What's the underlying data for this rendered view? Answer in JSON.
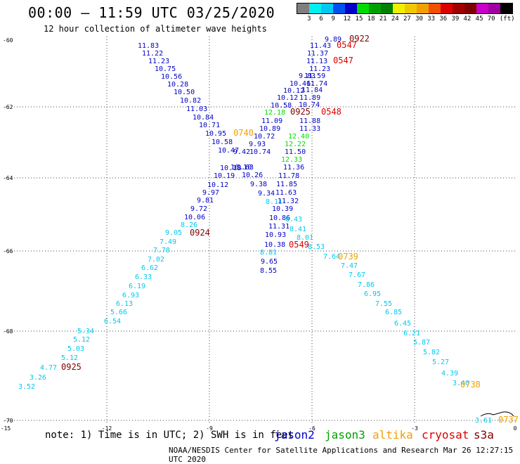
{
  "title": "00:00 – 11:59 UTC 03/25/2020",
  "subtitle": "12 hour collection of altimeter wave heights",
  "legend": {
    "colors": [
      "#7f7f7f",
      "#00f0f0",
      "#00c8f0",
      "#0050f0",
      "#0000c8",
      "#00dc00",
      "#00a000",
      "#008000",
      "#f0f000",
      "#f0c800",
      "#f0a000",
      "#f05000",
      "#dc0000",
      "#a00000",
      "#800000",
      "#c800c8",
      "#a000a0",
      "#000000"
    ],
    "labels": [
      "3",
      "6",
      "9",
      "12",
      "15",
      "18",
      "21",
      "24",
      "27",
      "30",
      "33",
      "36",
      "39",
      "42",
      "45",
      "70",
      "(ft)"
    ]
  },
  "axes": {
    "y_ticks": [
      "-60",
      "-62",
      "-64",
      "-66",
      "-68",
      "-70"
    ],
    "x_ticks": [
      "-15",
      "-12",
      "-9",
      "-6",
      "-3",
      "0"
    ]
  },
  "note": "note: 1) Time is in UTC; 2) SWH is in feet",
  "satellites": [
    {
      "name": "jason2",
      "color": "#0000c8"
    },
    {
      "name": "jason3",
      "color": "#00a000"
    },
    {
      "name": "altika",
      "color": "#f0a000"
    },
    {
      "name": "cryosat",
      "color": "#dc0000"
    },
    {
      "name": "s3a",
      "color": "#800000"
    }
  ],
  "credit": "NOAA/NESDIS Center for Satellite Applications and Research   Mar 26 12:27:15 UTC 2020",
  "tracks": {
    "jason2_nw": {
      "color": "#0000c8",
      "values": [
        "11.83",
        "11.22",
        "11.23",
        "10.75",
        "10.56",
        "10.28",
        "10.50",
        "10.82",
        "11.03",
        "10.84",
        "10.71",
        "10.95",
        "10.58",
        "10.47",
        "10.18",
        "10.19",
        "10.12",
        "9.97",
        "9.81",
        "9.72",
        "10.06"
      ]
    },
    "cyan_sw": {
      "color": "#00c8f0",
      "values": [
        "8.26",
        "9.05",
        "7.49",
        "7.78",
        "7.02",
        "6.62",
        "6.33",
        "6.19",
        "6.93",
        "6.13",
        "5.66",
        "6.54",
        "5.34",
        "5.12",
        "5.03",
        "5.12",
        "4.77",
        "3.26",
        "3.52"
      ]
    },
    "jason2_ne": {
      "color": "#0000c8",
      "values": [
        "9.89",
        "11.43",
        "11.37",
        "11.13",
        "11.23",
        "9.83",
        "10.46",
        "10.12",
        "10.12",
        "10.58",
        "11.09",
        "10.89",
        "10.72",
        "9.93",
        "10.74",
        "9.42",
        "10.10",
        "9.63",
        "10.26",
        "9.38",
        "9.34"
      ]
    },
    "jason2_ne_right": {
      "color": "#0000c8",
      "values": [
        "11.59",
        "11.74",
        "11.84",
        "11.89",
        "10.74",
        "11.88",
        "11.33",
        "11.50",
        "11.36",
        "11.78",
        "11.85",
        "11.63",
        "11.32",
        "10.39",
        "10.86",
        "11.31",
        "10.93",
        "10.38",
        "9.65",
        "8.55"
      ]
    },
    "jason3": {
      "color": "#00e000",
      "values": [
        "12.18",
        "12.40",
        "12.22",
        "12.33"
      ]
    },
    "cyan_se": {
      "color": "#00c8f0",
      "values": [
        "8.11",
        "8.43",
        "8.41",
        "8.01",
        "8.53",
        "7.64",
        "7.47",
        "7.67",
        "7.86",
        "6.95",
        "7.55",
        "6.85",
        "6.45",
        "6.21",
        "5.87",
        "5.82",
        "5.27",
        "4.39",
        "3.40",
        "3.61",
        "8.81"
      ]
    },
    "times": [
      {
        "label": "0922",
        "color": "#800000"
      },
      {
        "label": "0547",
        "color": "#dc0000"
      },
      {
        "label": "0547",
        "color": "#dc0000"
      },
      {
        "label": "0925",
        "color": "#800000"
      },
      {
        "label": "0548",
        "color": "#dc0000"
      },
      {
        "label": "0740",
        "color": "#f0a000"
      },
      {
        "label": "0924",
        "color": "#800000"
      },
      {
        "label": "0549",
        "color": "#dc0000"
      },
      {
        "label": "0739",
        "color": "#f0a000"
      },
      {
        "label": "0925",
        "color": "#800000"
      },
      {
        "label": "0738",
        "color": "#f0a000"
      },
      {
        "label": "0737",
        "color": "#f0a000"
      }
    ]
  }
}
